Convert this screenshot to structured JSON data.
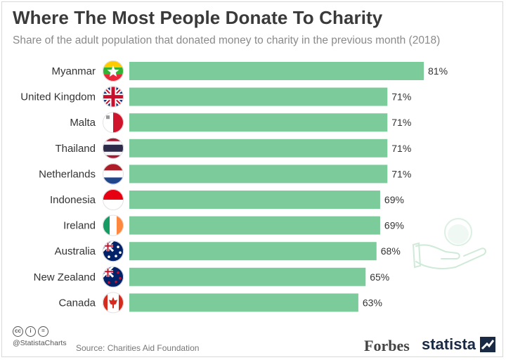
{
  "header": {
    "title": "Where The Most People Donate To Charity",
    "subtitle": "Share of the adult population that donated money to charity in the previous month (2018)"
  },
  "footer": {
    "handle": "@StatistaCharts",
    "source": "Source: Charities Aid Foundation",
    "forbes": "Forbes",
    "statista": "statista",
    "cc_icons": [
      "cc",
      "i",
      "="
    ]
  },
  "colors": {
    "bar": "#7ccb9a",
    "text": "#333333"
  },
  "chart_data": {
    "type": "bar",
    "orientation": "horizontal",
    "title": "Where The Most People Donate To Charity",
    "subtitle": "Share of the adult population that donated money to charity in the previous month (2018)",
    "unit": "%",
    "xlim": [
      0,
      100
    ],
    "grid": false,
    "categories": [
      "Myanmar",
      "United Kingdom",
      "Malta",
      "Thailand",
      "Netherlands",
      "Indonesia",
      "Ireland",
      "Australia",
      "New Zealand",
      "Canada"
    ],
    "values": [
      81,
      71,
      71,
      71,
      71,
      69,
      69,
      68,
      65,
      63
    ],
    "labels": [
      "81%",
      "71%",
      "71%",
      "71%",
      "71%",
      "69%",
      "69%",
      "68%",
      "65%",
      "63%"
    ],
    "flags": [
      "myanmar-flag-icon",
      "uk-flag-icon",
      "malta-flag-icon",
      "thailand-flag-icon",
      "netherlands-flag-icon",
      "indonesia-flag-icon",
      "ireland-flag-icon",
      "australia-flag-icon",
      "new-zealand-flag-icon",
      "canada-flag-icon"
    ]
  }
}
